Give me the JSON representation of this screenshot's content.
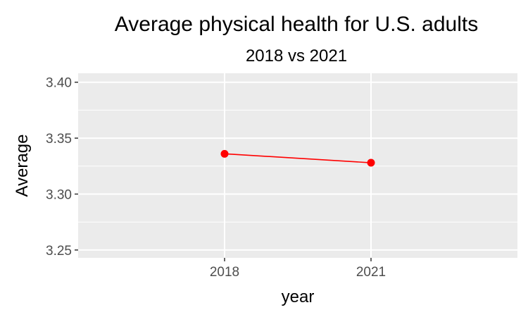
{
  "chart_data": {
    "type": "line",
    "title": "Average physical health for U.S. adults",
    "subtitle": "2018 vs 2021",
    "xlabel": "year",
    "ylabel": "Average",
    "categories": [
      "2018",
      "2021"
    ],
    "series": [
      {
        "values": [
          3.336,
          3.328
        ]
      }
    ],
    "ylim": [
      3.243,
      3.408
    ],
    "yticks": [
      3.25,
      3.3,
      3.35,
      3.4
    ],
    "ytick_labels": [
      "3.25",
      "3.30",
      "3.35",
      "3.40"
    ],
    "grid": true,
    "legend": "none",
    "colors": {
      "panel_background": "#ebebeb",
      "grid": "#ffffff",
      "line": "#ff0000",
      "point": "#ff0000",
      "tick_text": "#4d4d4d",
      "tick_mark": "#333333"
    }
  }
}
